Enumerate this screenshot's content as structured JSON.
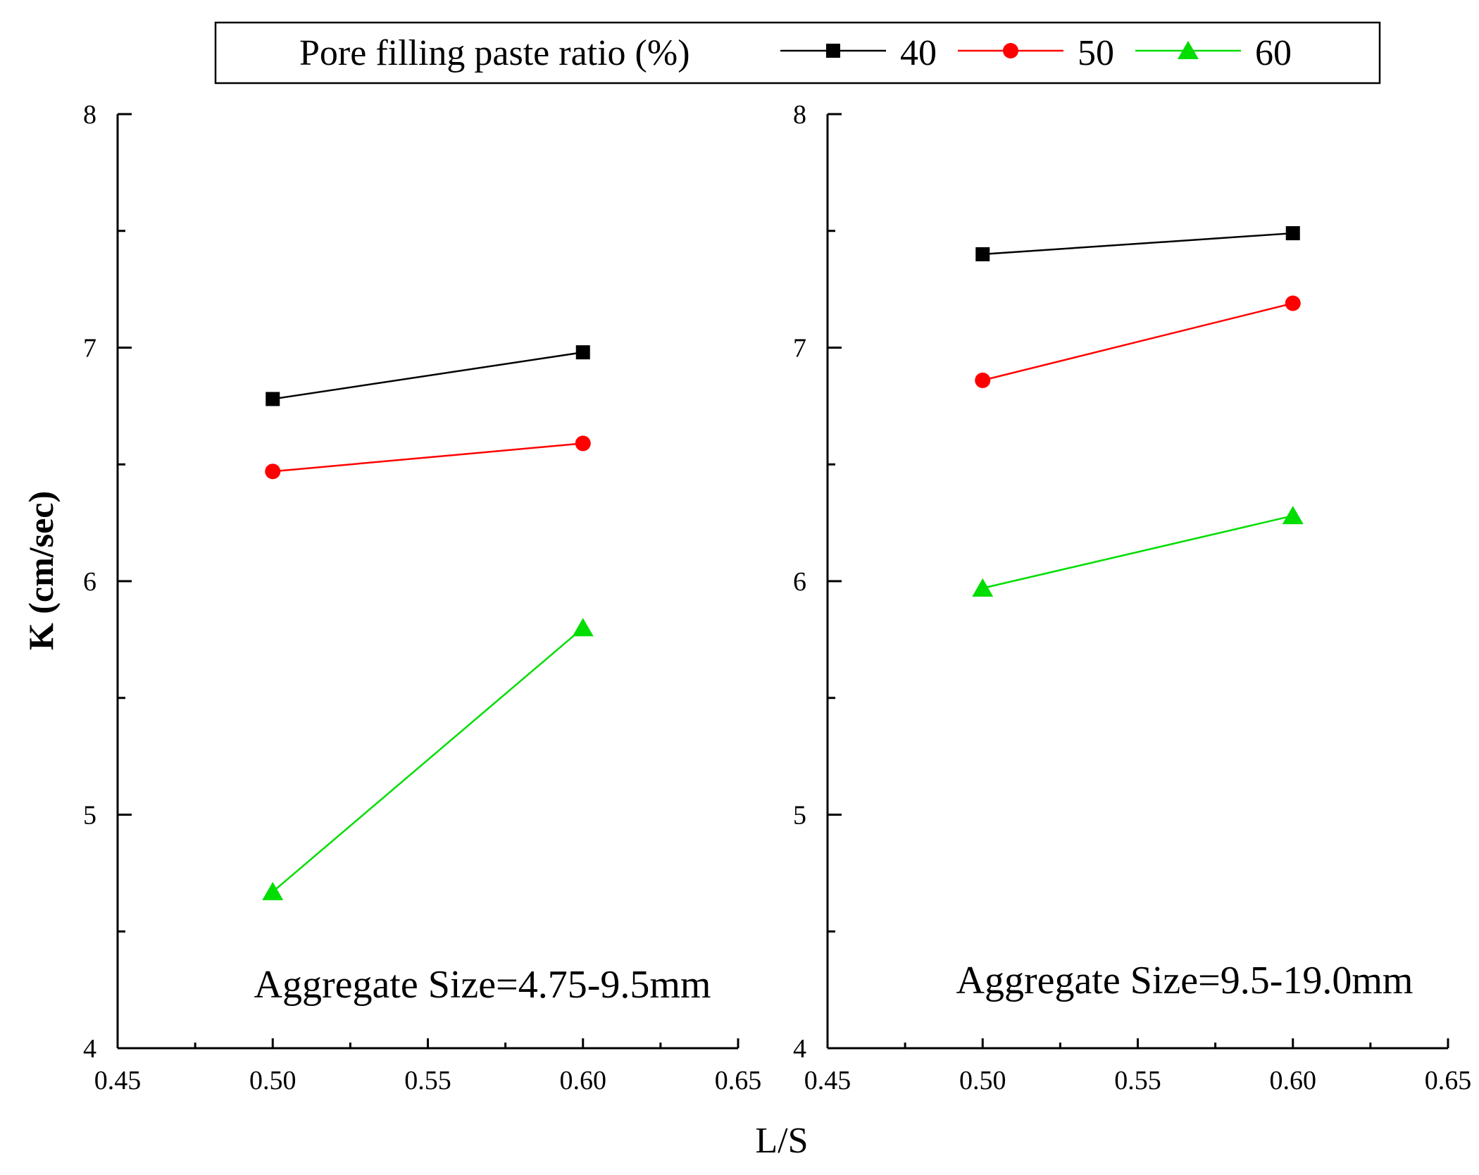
{
  "chart_data": {
    "type": "line",
    "ylabel": "K (cm/sec)",
    "xlabel": "L/S",
    "legend": {
      "title": "Pore filling paste ratio (%)",
      "placement": "top",
      "entries": [
        {
          "name": "40",
          "color": "#000000",
          "marker": "square"
        },
        {
          "name": "50",
          "color": "#ff0000",
          "marker": "circle"
        },
        {
          "name": "60",
          "color": "#00dd00",
          "marker": "triangle"
        }
      ]
    },
    "panels": [
      {
        "annotation": "Aggregate Size=4.75-9.5mm",
        "xlim": [
          0.45,
          0.65
        ],
        "ylim": [
          4,
          8
        ],
        "xticks": [
          "0.45",
          "0.50",
          "0.55",
          "0.60",
          "0.65"
        ],
        "yticks": [
          "4",
          "5",
          "6",
          "7",
          "8"
        ],
        "series": [
          {
            "name": "40",
            "x": [
              0.5,
              0.6
            ],
            "y": [
              6.78,
              6.98
            ]
          },
          {
            "name": "50",
            "x": [
              0.5,
              0.6
            ],
            "y": [
              6.47,
              6.59
            ]
          },
          {
            "name": "60",
            "x": [
              0.5,
              0.6
            ],
            "y": [
              4.67,
              5.8
            ]
          }
        ]
      },
      {
        "annotation": "Aggregate Size=9.5-19.0mm",
        "xlim": [
          0.45,
          0.65
        ],
        "ylim": [
          4,
          8
        ],
        "xticks": [
          "0.45",
          "0.50",
          "0.55",
          "0.60",
          "0.65"
        ],
        "yticks": [
          "4",
          "5",
          "6",
          "7",
          "8"
        ],
        "series": [
          {
            "name": "40",
            "x": [
              0.5,
              0.6
            ],
            "y": [
              7.4,
              7.49
            ]
          },
          {
            "name": "50",
            "x": [
              0.5,
              0.6
            ],
            "y": [
              6.86,
              7.19
            ]
          },
          {
            "name": "60",
            "x": [
              0.5,
              0.6
            ],
            "y": [
              5.97,
              6.28
            ]
          }
        ]
      }
    ]
  }
}
